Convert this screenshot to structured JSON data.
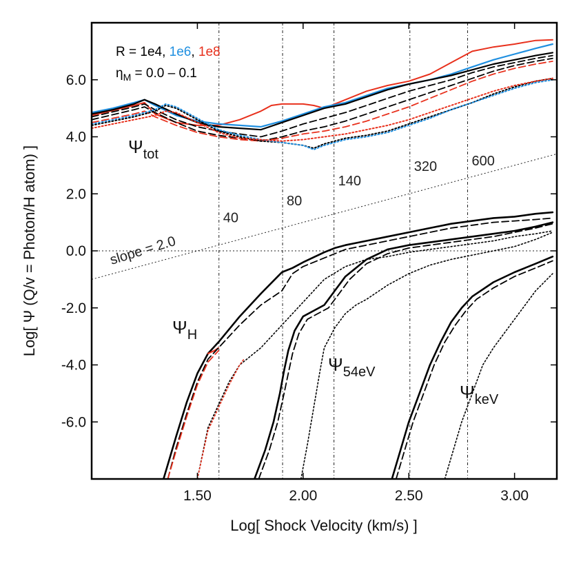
{
  "chart_data": {
    "type": "line",
    "xlabel": "Log[ Shock Velocity (km/s) ]",
    "ylabel": "Log[ Ψ (Q/v = Photon/H atom) ]",
    "xlim": [
      1.0,
      3.2
    ],
    "ylim": [
      -8.0,
      8.0
    ],
    "xticks": [
      {
        "value": 1.5,
        "label": "1.50"
      },
      {
        "value": 2.0,
        "label": "2.00"
      },
      {
        "value": 2.5,
        "label": "2.50"
      },
      {
        "value": 3.0,
        "label": "3.00"
      }
    ],
    "yticks": [
      {
        "value": 6,
        "label": "6.0"
      },
      {
        "value": 4,
        "label": "4.0"
      },
      {
        "value": 2,
        "label": "2.0"
      },
      {
        "value": 0,
        "label": "0.0"
      },
      {
        "value": -2,
        "label": "-2.0"
      },
      {
        "value": -4,
        "label": "-4.0"
      },
      {
        "value": -6,
        "label": "-6.0"
      }
    ],
    "legend": {
      "line1_prefix": "R = 1e4, ",
      "line1_mid": "1e6",
      "line1_sep": ", ",
      "line1_end": "1e8",
      "eta_symbol": "η",
      "eta_sub": "M",
      "eta_range": " = 0.0 – 0.1"
    },
    "colors": {
      "R1e4": "#000000",
      "R1e6": "#1f8fe0",
      "R1e8": "#e8301c"
    },
    "velocity_markers": [
      {
        "x": 1.602,
        "label": "40",
        "label_y": 1.0
      },
      {
        "x": 1.903,
        "label": "80",
        "label_y": 1.6
      },
      {
        "x": 2.146,
        "label": "140",
        "label_y": 2.3
      },
      {
        "x": 2.505,
        "label": "320",
        "label_y": 2.8
      },
      {
        "x": 2.778,
        "label": "600",
        "label_y": 3.0
      }
    ],
    "reference_line": {
      "slope": 2.0,
      "intercept": -3.0,
      "label": "slope = 2.0"
    },
    "curve_labels": {
      "tot": {
        "base": "Ψ",
        "sub": "tot"
      },
      "h": {
        "base": "Ψ",
        "sub": "H"
      },
      "e54": {
        "base": "Ψ",
        "sub": "54eV"
      },
      "kev": {
        "base": "Ψ",
        "sub": "keV"
      }
    },
    "series": [
      {
        "name": "Psi_tot R=1e8 eta=0.0",
        "color": "#e8301c",
        "dash": "solid",
        "width": 2,
        "x": [
          1.0,
          1.2,
          1.25,
          1.3,
          1.4,
          1.5,
          1.6,
          1.7,
          1.8,
          1.85,
          1.9,
          2.0,
          2.05,
          2.1,
          2.2,
          2.3,
          2.4,
          2.5,
          2.6,
          2.7,
          2.8,
          2.9,
          3.0,
          3.1,
          3.18
        ],
        "y": [
          4.75,
          5.1,
          5.2,
          4.8,
          4.5,
          4.4,
          4.4,
          4.6,
          4.9,
          5.1,
          5.15,
          5.15,
          5.1,
          5.0,
          5.3,
          5.6,
          5.8,
          5.95,
          6.2,
          6.6,
          7.0,
          7.15,
          7.25,
          7.38,
          7.4
        ]
      },
      {
        "name": "Psi_tot R=1e6 eta=0.0",
        "color": "#1f8fe0",
        "dash": "solid",
        "width": 2.2,
        "x": [
          1.0,
          1.1,
          1.2,
          1.25,
          1.3,
          1.4,
          1.5,
          1.6,
          1.7,
          1.8,
          1.9,
          2.0,
          2.1,
          2.2,
          2.3,
          2.4,
          2.5,
          2.6,
          2.7,
          2.8,
          2.9,
          3.0,
          3.1,
          3.18
        ],
        "y": [
          4.85,
          5.0,
          5.2,
          5.3,
          5.1,
          4.75,
          4.55,
          4.45,
          4.4,
          4.35,
          4.55,
          4.8,
          5.05,
          5.2,
          5.45,
          5.7,
          5.85,
          6.0,
          6.2,
          6.45,
          6.7,
          6.9,
          7.1,
          7.25
        ]
      },
      {
        "name": "Psi_tot R=1e4 eta=0.0",
        "color": "#000000",
        "dash": "solid",
        "width": 2.2,
        "x": [
          1.0,
          1.1,
          1.2,
          1.25,
          1.3,
          1.4,
          1.5,
          1.6,
          1.7,
          1.8,
          1.9,
          2.0,
          2.1,
          2.2,
          2.3,
          2.4,
          2.5,
          2.6,
          2.7,
          2.8,
          2.9,
          3.0,
          3.1,
          3.18
        ],
        "y": [
          4.8,
          4.95,
          5.15,
          5.3,
          5.15,
          4.8,
          4.5,
          4.35,
          4.3,
          4.25,
          4.5,
          4.75,
          5.0,
          5.15,
          5.4,
          5.65,
          5.85,
          6.0,
          6.15,
          6.35,
          6.55,
          6.7,
          6.85,
          6.95
        ]
      },
      {
        "name": "Psi_tot R=1e4 eta=0.02",
        "color": "#000000",
        "dash": "dashed",
        "width": 1.8,
        "x": [
          1.0,
          1.2,
          1.25,
          1.3,
          1.4,
          1.5,
          1.6,
          1.7,
          1.8,
          1.9,
          2.0,
          2.1,
          2.2,
          2.3,
          2.4,
          2.5,
          2.6,
          2.7,
          2.8,
          2.9,
          3.0,
          3.1,
          3.18
        ],
        "y": [
          4.7,
          5.05,
          5.15,
          4.95,
          4.6,
          4.35,
          4.2,
          4.1,
          4.0,
          4.2,
          4.45,
          4.65,
          4.85,
          5.1,
          5.35,
          5.6,
          5.8,
          6.0,
          6.25,
          6.45,
          6.6,
          6.75,
          6.85
        ]
      },
      {
        "name": "Psi_tot R=1e4 eta=0.05",
        "color": "#000000",
        "dash": "dashed",
        "width": 1.8,
        "x": [
          1.0,
          1.2,
          1.25,
          1.3,
          1.4,
          1.5,
          1.6,
          1.7,
          1.8,
          1.9,
          2.0,
          2.1,
          2.2,
          2.3,
          2.4,
          2.5,
          2.6,
          2.7,
          2.8,
          2.9,
          3.0,
          3.1,
          3.18
        ],
        "y": [
          4.6,
          4.95,
          5.05,
          4.85,
          4.5,
          4.2,
          4.05,
          3.95,
          3.85,
          4.0,
          4.2,
          4.35,
          4.55,
          4.8,
          5.05,
          5.3,
          5.55,
          5.8,
          6.05,
          6.3,
          6.5,
          6.65,
          6.75
        ]
      },
      {
        "name": "Psi_tot R=1e8 eta=0.05",
        "color": "#e8301c",
        "dash": "dashed",
        "width": 1.8,
        "x": [
          1.0,
          1.2,
          1.25,
          1.3,
          1.4,
          1.5,
          1.6,
          1.7,
          1.8,
          1.9,
          2.0,
          2.1,
          2.2,
          2.3,
          2.4,
          2.5,
          2.6,
          2.7,
          2.8,
          2.9,
          3.0,
          3.1,
          3.18
        ],
        "y": [
          4.5,
          4.8,
          4.9,
          4.7,
          4.4,
          4.15,
          4.0,
          3.9,
          3.85,
          3.95,
          4.1,
          4.2,
          4.35,
          4.55,
          4.8,
          5.05,
          5.35,
          5.65,
          5.95,
          6.2,
          6.4,
          6.55,
          6.65
        ]
      },
      {
        "name": "Psi_tot R=1e4 eta=0.1",
        "color": "#000000",
        "dash": "dotted",
        "width": 2,
        "x": [
          1.0,
          1.2,
          1.3,
          1.35,
          1.4,
          1.5,
          1.6,
          1.7,
          1.8,
          1.9,
          2.0,
          2.05,
          2.1,
          2.2,
          2.3,
          2.4,
          2.5,
          2.6,
          2.7,
          2.8,
          2.9,
          3.0,
          3.1,
          3.18
        ],
        "y": [
          4.4,
          4.7,
          4.9,
          5.1,
          5.0,
          4.6,
          4.2,
          4.0,
          3.85,
          3.8,
          3.7,
          3.6,
          3.75,
          3.95,
          4.05,
          4.2,
          4.45,
          4.7,
          4.95,
          5.2,
          5.5,
          5.75,
          5.95,
          6.05
        ]
      },
      {
        "name": "Psi_tot R=1e6 eta=0.1",
        "color": "#1f8fe0",
        "dash": "dotted",
        "width": 2,
        "x": [
          1.0,
          1.2,
          1.3,
          1.35,
          1.4,
          1.5,
          1.6,
          1.7,
          1.8,
          1.9,
          2.0,
          2.05,
          2.1,
          2.2,
          2.3,
          2.4,
          2.5,
          2.6,
          2.7,
          2.8,
          2.9,
          3.0,
          3.1,
          3.18
        ],
        "y": [
          4.45,
          4.75,
          4.95,
          5.15,
          5.05,
          4.65,
          4.25,
          4.05,
          3.9,
          3.8,
          3.7,
          3.55,
          3.7,
          3.9,
          4.0,
          4.15,
          4.4,
          4.65,
          4.95,
          5.2,
          5.45,
          5.7,
          5.9,
          6.0
        ]
      },
      {
        "name": "Psi_tot R=1e8 eta=0.1",
        "color": "#e8301c",
        "dash": "dotted",
        "width": 2,
        "x": [
          1.0,
          1.2,
          1.3,
          1.35,
          1.4,
          1.5,
          1.6,
          1.7,
          1.8,
          1.9,
          2.0,
          2.1,
          2.2,
          2.3,
          2.4,
          2.5,
          2.6,
          2.7,
          2.8,
          2.9,
          3.0,
          3.1,
          3.18
        ],
        "y": [
          4.3,
          4.6,
          4.75,
          4.9,
          4.85,
          4.5,
          4.15,
          3.95,
          3.9,
          3.85,
          3.9,
          4.0,
          4.1,
          4.25,
          4.4,
          4.6,
          4.85,
          5.1,
          5.35,
          5.6,
          5.8,
          5.95,
          6.05
        ]
      },
      {
        "name": "Psi_H R=1e4 eta=0.0",
        "color": "#000000",
        "dash": "solid",
        "width": 2.6,
        "x": [
          1.34,
          1.4,
          1.45,
          1.5,
          1.55,
          1.6,
          1.7,
          1.8,
          1.88,
          1.9,
          1.95,
          2.0,
          2.1,
          2.15,
          2.2,
          2.3,
          2.4,
          2.5,
          2.6,
          2.7,
          2.8,
          2.9,
          3.0,
          3.1,
          3.18
        ],
        "y": [
          -8.0,
          -6.5,
          -5.3,
          -4.3,
          -3.6,
          -3.2,
          -2.3,
          -1.5,
          -0.9,
          -0.75,
          -0.6,
          -0.4,
          -0.05,
          0.1,
          0.2,
          0.35,
          0.5,
          0.65,
          0.8,
          0.95,
          1.05,
          1.15,
          1.2,
          1.3,
          1.35
        ]
      },
      {
        "name": "Psi_H R=1e8 eta=0.0",
        "color": "#e8301c",
        "dash": "solid",
        "width": 2,
        "x": [
          1.55,
          1.58,
          1.6
        ],
        "y": [
          -3.6,
          -3.5,
          -3.4
        ]
      },
      {
        "name": "Psi_H R=1e4 eta=0.05",
        "color": "#000000",
        "dash": "dashed",
        "width": 1.8,
        "x": [
          1.36,
          1.4,
          1.45,
          1.5,
          1.55,
          1.6,
          1.7,
          1.8,
          1.9,
          1.95,
          2.0,
          2.1,
          2.2,
          2.3,
          2.4,
          2.5,
          2.6,
          2.7,
          2.8,
          2.9,
          3.0,
          3.1,
          3.18
        ],
        "y": [
          -8.0,
          -6.9,
          -5.7,
          -4.6,
          -3.8,
          -3.4,
          -2.6,
          -1.9,
          -1.4,
          -0.8,
          -0.55,
          -0.25,
          0.05,
          0.2,
          0.35,
          0.5,
          0.65,
          0.8,
          0.9,
          1.0,
          1.05,
          1.1,
          1.15
        ]
      },
      {
        "name": "Psi_H R=1e8 eta=0.05",
        "color": "#e8301c",
        "dash": "dashed",
        "width": 1.8,
        "x": [
          1.36,
          1.4,
          1.45,
          1.5,
          1.55,
          1.6
        ],
        "y": [
          -8.0,
          -7.0,
          -5.8,
          -4.7,
          -3.9,
          -3.5
        ]
      },
      {
        "name": "Psi_H R=1e4 eta=0.1",
        "color": "#000000",
        "dash": "dotted",
        "width": 1.6,
        "x": [
          1.5,
          1.55,
          1.6,
          1.65,
          1.7,
          1.8,
          1.9,
          2.0,
          2.1,
          2.2,
          2.3,
          2.4,
          2.5,
          2.6,
          2.7,
          2.8,
          2.9,
          3.0,
          3.1,
          3.18
        ],
        "y": [
          -8.0,
          -6.2,
          -5.4,
          -4.6,
          -4.0,
          -3.4,
          -2.6,
          -1.8,
          -1.0,
          -0.55,
          -0.3,
          -0.2,
          -0.05,
          0.05,
          0.15,
          0.25,
          0.35,
          0.5,
          0.6,
          0.7
        ]
      },
      {
        "name": "Psi_H R=1e8 eta=0.1",
        "color": "#e8301c",
        "dash": "dotted",
        "width": 1.6,
        "x": [
          1.5,
          1.55,
          1.6,
          1.65,
          1.7,
          1.72
        ],
        "y": [
          -8.0,
          -6.3,
          -5.5,
          -4.7,
          -4.0,
          -3.8
        ]
      },
      {
        "name": "Psi_54eV R=1e4 eta=0.0",
        "color": "#000000",
        "dash": "solid",
        "width": 2.6,
        "x": [
          1.77,
          1.82,
          1.86,
          1.89,
          1.91,
          1.93,
          1.96,
          2.0,
          2.05,
          2.1,
          2.15,
          2.2,
          2.3,
          2.4,
          2.5,
          2.6,
          2.7,
          2.8,
          2.9,
          3.0,
          3.1,
          3.18
        ],
        "y": [
          -8.0,
          -7.0,
          -6.0,
          -5.0,
          -4.2,
          -3.5,
          -2.8,
          -2.3,
          -2.1,
          -1.9,
          -1.4,
          -0.9,
          -0.3,
          0.05,
          0.2,
          0.3,
          0.4,
          0.5,
          0.6,
          0.7,
          0.85,
          1.0
        ]
      },
      {
        "name": "Psi_54eV R=1e4 eta=0.05",
        "color": "#000000",
        "dash": "dashed",
        "width": 1.8,
        "x": [
          1.79,
          1.84,
          1.88,
          1.91,
          1.93,
          1.95,
          1.98,
          2.02,
          2.07,
          2.12,
          2.17,
          2.22,
          2.3,
          2.4,
          2.5,
          2.6,
          2.7,
          2.8,
          2.9,
          3.0,
          3.1,
          3.18
        ],
        "y": [
          -8.0,
          -7.0,
          -6.0,
          -5.0,
          -4.3,
          -3.6,
          -2.9,
          -2.4,
          -2.2,
          -2.0,
          -1.5,
          -1.0,
          -0.45,
          -0.1,
          0.1,
          0.2,
          0.3,
          0.4,
          0.5,
          0.65,
          0.8,
          0.95
        ]
      },
      {
        "name": "Psi_54eV R=1e4 eta=0.1",
        "color": "#000000",
        "dash": "dotted",
        "width": 1.6,
        "x": [
          1.99,
          2.02,
          2.05,
          2.08,
          2.1,
          2.15,
          2.2,
          2.25,
          2.3,
          2.4,
          2.5,
          2.6,
          2.7,
          2.8,
          2.9,
          3.0,
          3.1,
          3.18
        ],
        "y": [
          -8.0,
          -6.8,
          -5.5,
          -4.2,
          -3.4,
          -2.7,
          -2.2,
          -1.9,
          -1.7,
          -1.2,
          -0.8,
          -0.5,
          -0.3,
          -0.15,
          0.0,
          0.15,
          0.4,
          0.65
        ]
      },
      {
        "name": "Psi_keV R=1e4 eta=0.0",
        "color": "#000000",
        "dash": "solid",
        "width": 2.6,
        "x": [
          2.42,
          2.46,
          2.5,
          2.55,
          2.6,
          2.65,
          2.7,
          2.75,
          2.8,
          2.9,
          3.0,
          3.1,
          3.18
        ],
        "y": [
          -8.0,
          -7.0,
          -6.0,
          -5.0,
          -4.0,
          -3.2,
          -2.5,
          -2.0,
          -1.6,
          -1.1,
          -0.75,
          -0.45,
          -0.2
        ]
      },
      {
        "name": "Psi_keV R=1e4 eta=0.05",
        "color": "#000000",
        "dash": "dashed",
        "width": 1.8,
        "x": [
          2.44,
          2.48,
          2.52,
          2.57,
          2.62,
          2.67,
          2.72,
          2.77,
          2.82,
          2.9,
          3.0,
          3.1,
          3.18
        ],
        "y": [
          -8.0,
          -7.0,
          -6.0,
          -5.0,
          -4.0,
          -3.2,
          -2.6,
          -2.1,
          -1.7,
          -1.3,
          -0.9,
          -0.6,
          -0.35
        ]
      },
      {
        "name": "Psi_keV R=1e4 eta=0.1",
        "color": "#000000",
        "dash": "dotted",
        "width": 1.6,
        "x": [
          2.67,
          2.71,
          2.75,
          2.8,
          2.85,
          2.9,
          2.95,
          3.0,
          3.05,
          3.1,
          3.18
        ],
        "y": [
          -8.0,
          -7.0,
          -6.0,
          -5.0,
          -4.0,
          -3.4,
          -2.9,
          -2.4,
          -1.9,
          -1.4,
          -0.8
        ]
      }
    ]
  }
}
